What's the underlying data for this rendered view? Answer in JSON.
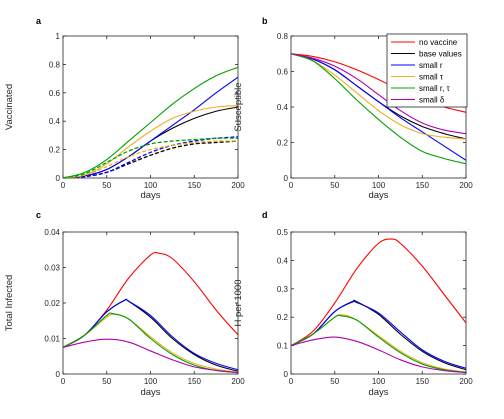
{
  "chart_data": [
    {
      "type": "line",
      "panel_label": "a",
      "xlabel": "days",
      "ylabel": "Vaccinated",
      "xlim": [
        0,
        200
      ],
      "ylim": [
        0,
        1
      ],
      "xticks": [
        0,
        50,
        100,
        150,
        200
      ],
      "yticks": [
        0,
        0.2,
        0.4,
        0.6,
        0.8,
        1
      ],
      "ytick_labels": [
        "0",
        "0.2",
        "0.4",
        "0.6",
        "0.8",
        "1"
      ],
      "grid": false,
      "series": [
        {
          "color": "#000000",
          "dash": false,
          "x": [
            0,
            25,
            50,
            75,
            100,
            125,
            150,
            175,
            200
          ],
          "y": [
            0,
            0.015,
            0.06,
            0.15,
            0.26,
            0.35,
            0.42,
            0.47,
            0.5
          ]
        },
        {
          "color": "#0000ff",
          "dash": false,
          "x": [
            0,
            25,
            50,
            75,
            100,
            125,
            150,
            175,
            200
          ],
          "y": [
            0,
            0.015,
            0.06,
            0.15,
            0.26,
            0.37,
            0.48,
            0.6,
            0.71
          ]
        },
        {
          "color": "#edb120",
          "dash": false,
          "x": [
            0,
            25,
            50,
            75,
            100,
            125,
            150,
            175,
            200
          ],
          "y": [
            0,
            0.02,
            0.1,
            0.22,
            0.33,
            0.42,
            0.47,
            0.5,
            0.51
          ]
        },
        {
          "color": "#00a000",
          "dash": false,
          "x": [
            0,
            25,
            50,
            75,
            100,
            125,
            150,
            175,
            200
          ],
          "y": [
            0,
            0.04,
            0.13,
            0.26,
            0.39,
            0.52,
            0.63,
            0.72,
            0.78
          ]
        },
        {
          "color": "#000000",
          "dash": true,
          "x": [
            0,
            25,
            50,
            75,
            100,
            125,
            150,
            175,
            200
          ],
          "y": [
            0,
            0.01,
            0.04,
            0.1,
            0.16,
            0.21,
            0.24,
            0.25,
            0.26
          ]
        },
        {
          "color": "#0000ff",
          "dash": true,
          "x": [
            0,
            25,
            50,
            75,
            100,
            125,
            150,
            175,
            200
          ],
          "y": [
            0,
            0.01,
            0.04,
            0.11,
            0.18,
            0.23,
            0.26,
            0.28,
            0.29
          ]
        },
        {
          "color": "#edb120",
          "dash": true,
          "x": [
            0,
            25,
            50,
            75,
            100,
            125,
            150,
            175,
            200
          ],
          "y": [
            0,
            0.02,
            0.08,
            0.15,
            0.2,
            0.23,
            0.25,
            0.26,
            0.26
          ]
        },
        {
          "color": "#00a000",
          "dash": true,
          "x": [
            0,
            25,
            50,
            75,
            100,
            125,
            150,
            175,
            200
          ],
          "y": [
            0,
            0.03,
            0.11,
            0.19,
            0.24,
            0.26,
            0.27,
            0.28,
            0.28
          ]
        }
      ]
    },
    {
      "type": "line",
      "panel_label": "b",
      "xlabel": "days",
      "ylabel": "Susceptible",
      "xlim": [
        0,
        200
      ],
      "ylim": [
        0,
        0.8
      ],
      "xticks": [
        0,
        50,
        100,
        150,
        200
      ],
      "yticks": [
        0,
        0.2,
        0.4,
        0.6,
        0.8
      ],
      "ytick_labels": [
        "0",
        "0.2",
        "0.4",
        "0.6",
        "0.8"
      ],
      "grid": false,
      "legend_position": "top-right",
      "series": [
        {
          "name": "no vaccine",
          "color": "#ff0000",
          "dash": false,
          "x": [
            0,
            25,
            50,
            75,
            100,
            125,
            150,
            175,
            200
          ],
          "y": [
            0.7,
            0.685,
            0.655,
            0.61,
            0.555,
            0.495,
            0.44,
            0.4,
            0.37
          ]
        },
        {
          "name": "base values",
          "color": "#000000",
          "dash": false,
          "x": [
            0,
            25,
            50,
            75,
            100,
            125,
            150,
            175,
            200
          ],
          "y": [
            0.7,
            0.67,
            0.61,
            0.52,
            0.43,
            0.35,
            0.29,
            0.25,
            0.22
          ]
        },
        {
          "name": "small r",
          "color": "#0000ff",
          "dash": false,
          "x": [
            0,
            25,
            50,
            75,
            100,
            125,
            150,
            175,
            200
          ],
          "y": [
            0.7,
            0.67,
            0.61,
            0.52,
            0.43,
            0.34,
            0.26,
            0.18,
            0.1
          ]
        },
        {
          "name": "small τ",
          "color": "#edb120",
          "dash": false,
          "x": [
            0,
            25,
            50,
            75,
            100,
            125,
            150,
            175,
            200
          ],
          "y": [
            0.7,
            0.66,
            0.58,
            0.48,
            0.38,
            0.3,
            0.25,
            0.23,
            0.22
          ]
        },
        {
          "name": "small r, τ",
          "color": "#00a000",
          "dash": false,
          "x": [
            0,
            25,
            50,
            75,
            100,
            125,
            150,
            175,
            200
          ],
          "y": [
            0.7,
            0.66,
            0.56,
            0.44,
            0.33,
            0.23,
            0.15,
            0.11,
            0.08
          ]
        },
        {
          "name": "small δ",
          "color": "#b000b0",
          "dash": false,
          "x": [
            0,
            25,
            50,
            75,
            100,
            125,
            150,
            175,
            200
          ],
          "y": [
            0.7,
            0.675,
            0.63,
            0.56,
            0.47,
            0.38,
            0.31,
            0.27,
            0.25
          ]
        }
      ]
    },
    {
      "type": "line",
      "panel_label": "c",
      "xlabel": "days",
      "ylabel": "Total Infected",
      "xlim": [
        0,
        200
      ],
      "ylim": [
        0,
        0.04
      ],
      "xticks": [
        0,
        50,
        100,
        150,
        200
      ],
      "yticks": [
        0,
        0.01,
        0.02,
        0.03,
        0.04
      ],
      "ytick_labels": [
        "0",
        "0.01",
        "0.02",
        "0.03",
        "0.04"
      ],
      "grid": false,
      "series": [
        {
          "color": "#ff0000",
          "dash": false,
          "x": [
            0,
            25,
            50,
            75,
            100,
            110,
            125,
            150,
            175,
            200
          ],
          "y": [
            0.0075,
            0.011,
            0.018,
            0.027,
            0.0335,
            0.034,
            0.0325,
            0.026,
            0.018,
            0.011
          ]
        },
        {
          "color": "#000000",
          "dash": false,
          "x": [
            0,
            25,
            50,
            70,
            75,
            100,
            125,
            150,
            175,
            200
          ],
          "y": [
            0.0075,
            0.011,
            0.0175,
            0.0207,
            0.0205,
            0.016,
            0.01,
            0.0055,
            0.0025,
            0.0008
          ]
        },
        {
          "color": "#0000ff",
          "dash": false,
          "x": [
            0,
            25,
            50,
            70,
            75,
            100,
            125,
            150,
            175,
            200
          ],
          "y": [
            0.0075,
            0.011,
            0.0175,
            0.0207,
            0.0205,
            0.0165,
            0.0105,
            0.0058,
            0.003,
            0.0012
          ]
        },
        {
          "color": "#edb120",
          "dash": false,
          "x": [
            0,
            25,
            50,
            60,
            75,
            100,
            125,
            150,
            175,
            200
          ],
          "y": [
            0.0075,
            0.011,
            0.016,
            0.0168,
            0.0155,
            0.0105,
            0.006,
            0.003,
            0.0014,
            0.0005
          ]
        },
        {
          "color": "#00a000",
          "dash": false,
          "x": [
            0,
            25,
            50,
            57,
            75,
            100,
            125,
            150,
            175,
            200
          ],
          "y": [
            0.0075,
            0.011,
            0.0165,
            0.017,
            0.0155,
            0.01,
            0.0055,
            0.0025,
            0.001,
            0.0004
          ]
        },
        {
          "color": "#b000b0",
          "dash": false,
          "x": [
            0,
            25,
            50,
            75,
            100,
            125,
            150,
            175,
            200
          ],
          "y": [
            0.0075,
            0.009,
            0.0098,
            0.009,
            0.0065,
            0.004,
            0.002,
            0.001,
            0.0004
          ]
        }
      ]
    },
    {
      "type": "line",
      "panel_label": "d",
      "xlabel": "days",
      "ylabel": "H per 1000",
      "xlim": [
        0,
        200
      ],
      "ylim": [
        0,
        0.5
      ],
      "xticks": [
        0,
        50,
        100,
        150,
        200
      ],
      "yticks": [
        0,
        0.1,
        0.2,
        0.3,
        0.4,
        0.5
      ],
      "ytick_labels": [
        "0",
        "0.1",
        "0.2",
        "0.3",
        "0.4",
        "0.5"
      ],
      "grid": false,
      "series": [
        {
          "color": "#ff0000",
          "dash": false,
          "x": [
            0,
            25,
            50,
            75,
            100,
            115,
            125,
            150,
            175,
            200
          ],
          "y": [
            0.1,
            0.15,
            0.25,
            0.37,
            0.46,
            0.475,
            0.46,
            0.38,
            0.28,
            0.18
          ]
        },
        {
          "color": "#000000",
          "dash": false,
          "x": [
            0,
            25,
            50,
            70,
            75,
            100,
            125,
            150,
            175,
            200
          ],
          "y": [
            0.1,
            0.14,
            0.22,
            0.255,
            0.255,
            0.21,
            0.14,
            0.08,
            0.04,
            0.015
          ]
        },
        {
          "color": "#0000ff",
          "dash": false,
          "x": [
            0,
            25,
            50,
            70,
            75,
            100,
            125,
            150,
            175,
            200
          ],
          "y": [
            0.1,
            0.14,
            0.22,
            0.253,
            0.252,
            0.215,
            0.148,
            0.085,
            0.045,
            0.02
          ]
        },
        {
          "color": "#edb120",
          "dash": false,
          "x": [
            0,
            25,
            50,
            60,
            75,
            100,
            125,
            150,
            175,
            200
          ],
          "y": [
            0.1,
            0.14,
            0.2,
            0.208,
            0.19,
            0.135,
            0.08,
            0.04,
            0.018,
            0.007
          ]
        },
        {
          "color": "#00a000",
          "dash": false,
          "x": [
            0,
            25,
            50,
            57,
            75,
            100,
            125,
            150,
            175,
            200
          ],
          "y": [
            0.1,
            0.14,
            0.2,
            0.205,
            0.19,
            0.13,
            0.075,
            0.035,
            0.015,
            0.006
          ]
        },
        {
          "color": "#b000b0",
          "dash": false,
          "x": [
            0,
            25,
            50,
            75,
            100,
            125,
            150,
            175,
            200
          ],
          "y": [
            0.1,
            0.12,
            0.13,
            0.115,
            0.085,
            0.05,
            0.025,
            0.012,
            0.005
          ]
        }
      ]
    }
  ]
}
